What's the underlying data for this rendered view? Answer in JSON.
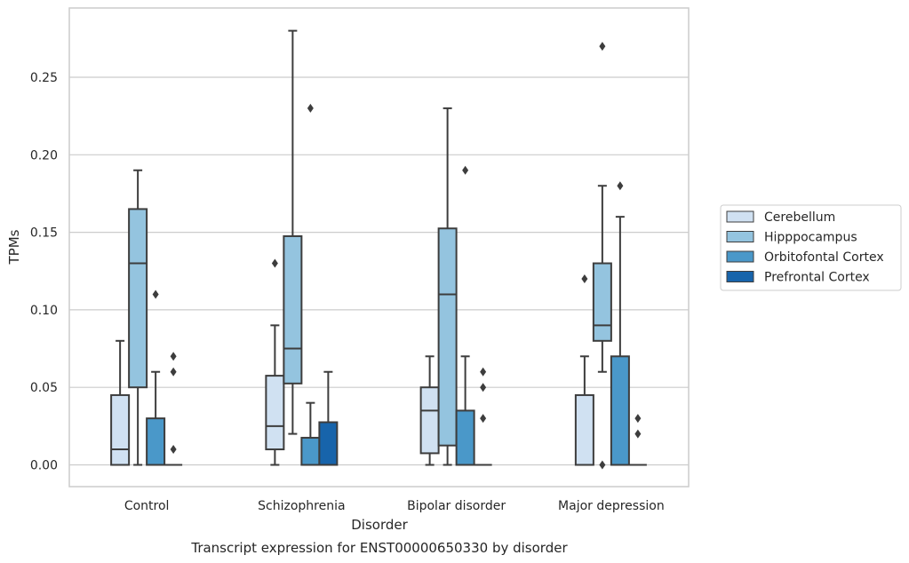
{
  "chart_data": {
    "type": "box",
    "title": "Transcript expression for ENST00000650330 by disorder",
    "xlabel": "Disorder",
    "ylabel": "TPMs",
    "ylim": [
      -0.0136,
      0.294
    ],
    "yticks": [
      "0.00",
      "0.05",
      "0.10",
      "0.15",
      "0.20",
      "0.25"
    ],
    "ytick_values": [
      0,
      0.05,
      0.1,
      0.15,
      0.2,
      0.25
    ],
    "grid": "horizontal",
    "legend_position": "right",
    "categories": [
      "Control",
      "Schizophrenia",
      "Bipolar disorder",
      "Major depression"
    ],
    "series": [
      {
        "name": "Cerebellum",
        "color": "#d0e1f2",
        "boxes": [
          {
            "whislo": 0,
            "q1": 0,
            "med": 0.01,
            "q3": 0.045,
            "whishi": 0.08,
            "fliers": []
          },
          {
            "whislo": 0,
            "q1": 0.01,
            "med": 0.025,
            "q3": 0.0575,
            "whishi": 0.09,
            "fliers": [
              0.13
            ]
          },
          {
            "whislo": 0,
            "q1": 0.0075,
            "med": 0.035,
            "q3": 0.05,
            "whishi": 0.07,
            "fliers": []
          },
          {
            "whislo": 0,
            "q1": 0,
            "med": 0,
            "q3": 0.045,
            "whishi": 0.07,
            "fliers": [
              0.12
            ]
          }
        ]
      },
      {
        "name": "Hipppocampus",
        "color": "#94c4df",
        "boxes": [
          {
            "whislo": 0,
            "q1": 0.05,
            "med": 0.13,
            "q3": 0.165,
            "whishi": 0.19,
            "fliers": []
          },
          {
            "whislo": 0.02,
            "q1": 0.0525,
            "med": 0.075,
            "q3": 0.1475,
            "whishi": 0.28,
            "fliers": []
          },
          {
            "whislo": 0,
            "q1": 0.0125,
            "med": 0.11,
            "q3": 0.1525,
            "whishi": 0.23,
            "fliers": []
          },
          {
            "whislo": 0.06,
            "q1": 0.08,
            "med": 0.09,
            "q3": 0.13,
            "whishi": 0.18,
            "fliers": [
              0,
              0.27
            ]
          }
        ]
      },
      {
        "name": "Orbitofontal Cortex",
        "color": "#4a98c9",
        "boxes": [
          {
            "whislo": 0,
            "q1": 0,
            "med": 0,
            "q3": 0.03,
            "whishi": 0.06,
            "fliers": [
              0.11
            ]
          },
          {
            "whislo": 0,
            "q1": 0,
            "med": 0,
            "q3": 0.0175,
            "whishi": 0.04,
            "fliers": [
              0.23
            ]
          },
          {
            "whislo": 0,
            "q1": 0,
            "med": 0,
            "q3": 0.035,
            "whishi": 0.07,
            "fliers": [
              0.19
            ]
          },
          {
            "whislo": 0,
            "q1": 0,
            "med": 0,
            "q3": 0.07,
            "whishi": 0.16,
            "fliers": [
              0.18
            ]
          }
        ]
      },
      {
        "name": "Prefrontal Cortex",
        "color": "#1764ab",
        "boxes": [
          {
            "whislo": 0,
            "q1": 0,
            "med": 0,
            "q3": 0,
            "whishi": 0,
            "fliers": [
              0.01,
              0.06,
              0.07
            ]
          },
          {
            "whislo": 0,
            "q1": 0,
            "med": 0,
            "q3": 0.0275,
            "whishi": 0.06,
            "fliers": []
          },
          {
            "whislo": 0,
            "q1": 0,
            "med": 0,
            "q3": 0,
            "whishi": 0,
            "fliers": [
              0.03,
              0.05,
              0.06
            ]
          },
          {
            "whislo": 0,
            "q1": 0,
            "med": 0,
            "q3": 0,
            "whishi": 0,
            "fliers": [
              0.02,
              0.03
            ]
          }
        ]
      }
    ]
  }
}
